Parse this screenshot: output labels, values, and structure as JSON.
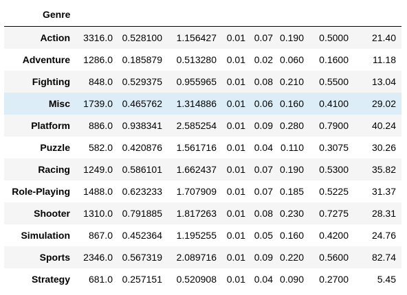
{
  "table": {
    "index_name": "Genre",
    "rows": [
      {
        "label": "Action",
        "values": [
          "3316.0",
          "0.528100",
          "1.156427",
          "0.01",
          "0.07",
          "0.190",
          "0.5000",
          "21.40"
        ]
      },
      {
        "label": "Adventure",
        "values": [
          "1286.0",
          "0.185879",
          "0.513280",
          "0.01",
          "0.02",
          "0.060",
          "0.1600",
          "11.18"
        ]
      },
      {
        "label": "Fighting",
        "values": [
          "848.0",
          "0.529375",
          "0.955965",
          "0.01",
          "0.08",
          "0.210",
          "0.5500",
          "13.04"
        ]
      },
      {
        "label": "Misc",
        "values": [
          "1739.0",
          "0.465762",
          "1.314886",
          "0.01",
          "0.06",
          "0.160",
          "0.4100",
          "29.02"
        ],
        "highlighted": true
      },
      {
        "label": "Platform",
        "values": [
          "886.0",
          "0.938341",
          "2.585254",
          "0.01",
          "0.09",
          "0.280",
          "0.7900",
          "40.24"
        ]
      },
      {
        "label": "Puzzle",
        "values": [
          "582.0",
          "0.420876",
          "1.561716",
          "0.01",
          "0.04",
          "0.110",
          "0.3075",
          "30.26"
        ]
      },
      {
        "label": "Racing",
        "values": [
          "1249.0",
          "0.586101",
          "1.662437",
          "0.01",
          "0.07",
          "0.190",
          "0.5300",
          "35.82"
        ]
      },
      {
        "label": "Role-Playing",
        "values": [
          "1488.0",
          "0.623233",
          "1.707909",
          "0.01",
          "0.07",
          "0.185",
          "0.5225",
          "31.37"
        ]
      },
      {
        "label": "Shooter",
        "values": [
          "1310.0",
          "0.791885",
          "1.817263",
          "0.01",
          "0.08",
          "0.230",
          "0.7275",
          "28.31"
        ]
      },
      {
        "label": "Simulation",
        "values": [
          "867.0",
          "0.452364",
          "1.195255",
          "0.01",
          "0.05",
          "0.160",
          "0.4200",
          "24.76"
        ]
      },
      {
        "label": "Sports",
        "values": [
          "2346.0",
          "0.567319",
          "2.089716",
          "0.01",
          "0.09",
          "0.220",
          "0.5600",
          "82.74"
        ]
      },
      {
        "label": "Strategy",
        "values": [
          "681.0",
          "0.257151",
          "0.520908",
          "0.01",
          "0.04",
          "0.090",
          "0.2700",
          "5.45"
        ]
      }
    ]
  },
  "colors": {
    "row_stripe": "#f5f5f5",
    "row_hover": "#dcedf8",
    "header_rule": "#000000"
  }
}
